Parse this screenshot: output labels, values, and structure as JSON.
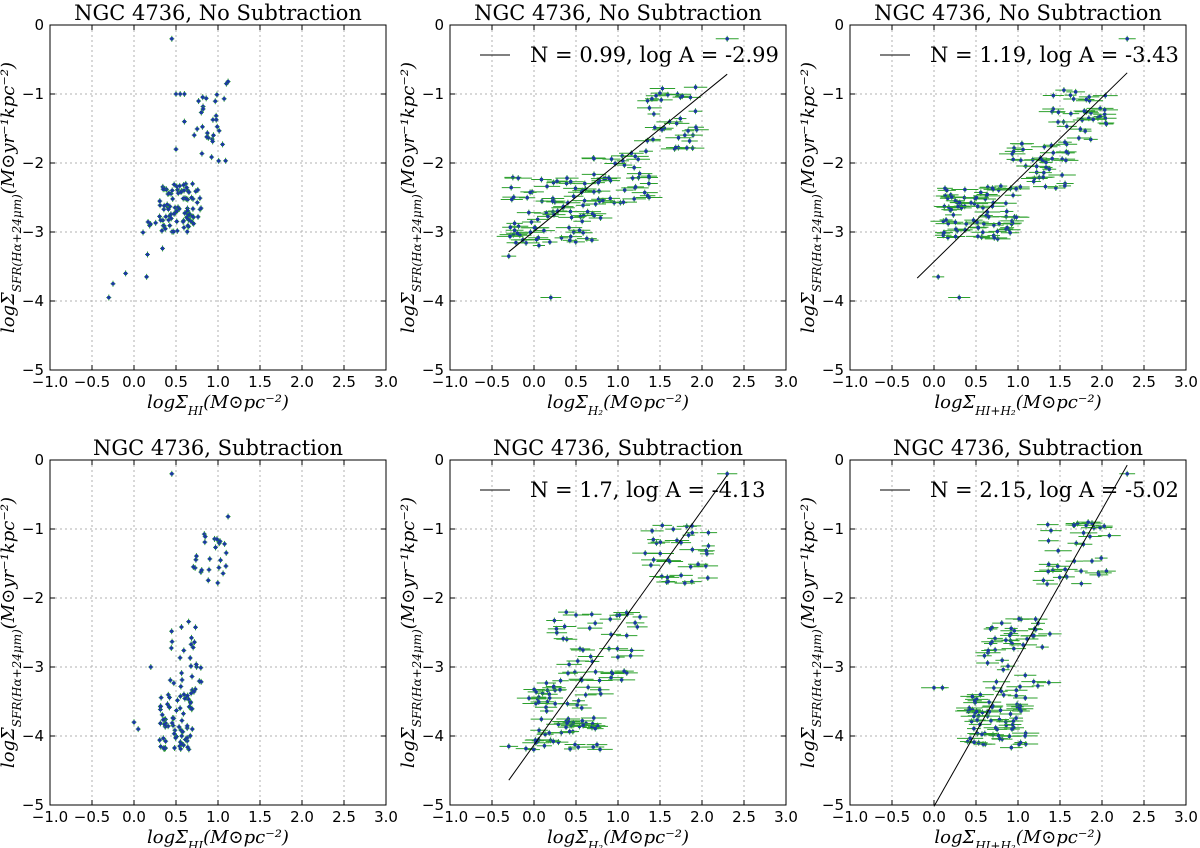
{
  "chart_data": [
    {
      "type": "scatter",
      "title": "NGC 4736, No Subtraction",
      "xlabel": "logΣ_HI(M⊙pc⁻²)",
      "ylabel": "logΣ_SFR(Hα+24μm)(M⊙yr⁻¹kpc⁻²)",
      "xlim": [
        -1.0,
        3.0
      ],
      "ylim": [
        -5,
        0
      ],
      "xticks": [
        "−1.0",
        "−0.5",
        "0.0",
        "0.5",
        "1.0",
        "1.5",
        "2.0",
        "2.5",
        "3.0"
      ],
      "yticks": [
        "0",
        "−1",
        "−2",
        "−3",
        "−4",
        "−5"
      ],
      "grid": true,
      "point_color": "#1a3aa0",
      "error_color": "#2ca02c",
      "clusters": [
        {
          "x": [
            0.3,
            0.8
          ],
          "y": [
            -3.0,
            -2.3
          ],
          "n": 90
        },
        {
          "x": [
            0.7,
            1.1
          ],
          "y": [
            -2.0,
            -1.0
          ],
          "n": 28
        },
        {
          "x": [
            0.1,
            0.4
          ],
          "y": [
            -3.4,
            -2.8
          ],
          "n": 10
        }
      ],
      "points": [
        {
          "x": 0.45,
          "y": -0.2
        },
        {
          "x": 1.1,
          "y": -0.85
        },
        {
          "x": 1.12,
          "y": -0.82
        },
        {
          "x": 0.5,
          "y": -1.0
        },
        {
          "x": 0.55,
          "y": -1.0
        },
        {
          "x": 0.6,
          "y": -1.0
        },
        {
          "x": 0.6,
          "y": -1.4
        },
        {
          "x": 0.5,
          "y": -1.8
        },
        {
          "x": -0.25,
          "y": -3.75
        },
        {
          "x": -0.3,
          "y": -3.95
        },
        {
          "x": -0.1,
          "y": -3.6
        },
        {
          "x": 0.15,
          "y": -3.65
        }
      ],
      "fit": null
    },
    {
      "type": "scatter",
      "title": "NGC 4736, No Subtraction",
      "xlabel": "logΣ_H2(M⊙pc⁻²)",
      "ylabel": "logΣ_SFR(Hα+24μm)(M⊙yr⁻¹kpc⁻²)",
      "xlim": [
        -1.0,
        3.0
      ],
      "ylim": [
        -5,
        0
      ],
      "xticks": [
        "−1.0",
        "−0.5",
        "0.0",
        "0.5",
        "1.0",
        "1.5",
        "2.0",
        "2.5",
        "3.0"
      ],
      "yticks": [
        "0",
        "−1",
        "−2",
        "−3",
        "−4",
        "−5"
      ],
      "grid": true,
      "point_color": "#1a3aa0",
      "error_color": "#2ca02c",
      "clusters": [
        {
          "x": [
            -0.3,
            0.8
          ],
          "y": [
            -3.2,
            -2.2
          ],
          "n": 80
        },
        {
          "x": [
            0.6,
            1.4
          ],
          "y": [
            -2.6,
            -1.8
          ],
          "n": 40
        },
        {
          "x": [
            1.3,
            2.0
          ],
          "y": [
            -1.8,
            -0.9
          ],
          "n": 35
        }
      ],
      "points": [
        {
          "x": 2.3,
          "y": -0.2
        },
        {
          "x": 0.2,
          "y": -3.95
        },
        {
          "x": -0.3,
          "y": -3.35
        }
      ],
      "fit": {
        "N": 0.99,
        "logA": -2.99,
        "x_range": [
          -0.3,
          2.3
        ]
      },
      "legend": "N = 0.99, log A = -2.99"
    },
    {
      "type": "scatter",
      "title": "NGC 4736, No Subtraction",
      "xlabel": "logΣ_HI+H2(M⊙pc⁻²)",
      "ylabel": "logΣ_SFR(Hα+24μm)(M⊙yr⁻¹kpc⁻²)",
      "xlim": [
        -1.0,
        3.0
      ],
      "ylim": [
        -5,
        0
      ],
      "xticks": [
        "−1.0",
        "−0.5",
        "0.0",
        "0.5",
        "1.0",
        "1.5",
        "2.0",
        "2.5",
        "3.0"
      ],
      "yticks": [
        "0",
        "−1",
        "−2",
        "−3",
        "−4",
        "−5"
      ],
      "grid": true,
      "point_color": "#1a3aa0",
      "error_color": "#2ca02c",
      "clusters": [
        {
          "x": [
            0.1,
            1.0
          ],
          "y": [
            -3.1,
            -2.3
          ],
          "n": 80
        },
        {
          "x": [
            0.9,
            1.6
          ],
          "y": [
            -2.4,
            -1.7
          ],
          "n": 40
        },
        {
          "x": [
            1.4,
            2.1
          ],
          "y": [
            -1.7,
            -0.9
          ],
          "n": 35
        }
      ],
      "points": [
        {
          "x": 2.3,
          "y": -0.2
        },
        {
          "x": 0.3,
          "y": -3.95
        },
        {
          "x": 0.05,
          "y": -3.65
        }
      ],
      "fit": {
        "N": 1.19,
        "logA": -3.43,
        "x_range": [
          -0.2,
          2.3
        ]
      },
      "legend": "N = 1.19, log A = -3.43"
    },
    {
      "type": "scatter",
      "title": "NGC 4736, Subtraction",
      "xlabel": "logΣ_HI(M⊙pc⁻²)",
      "ylabel": "logΣ_SFR(Hα+24μm)(M⊙yr⁻¹kpc⁻²)",
      "xlim": [
        -1.0,
        3.0
      ],
      "ylim": [
        -5,
        0
      ],
      "xticks": [
        "−1.0",
        "−0.5",
        "0.0",
        "0.5",
        "1.0",
        "1.5",
        "2.0",
        "2.5",
        "3.0"
      ],
      "yticks": [
        "0",
        "−1",
        "−2",
        "−3",
        "−4",
        "−5"
      ],
      "grid": true,
      "point_color": "#1a3aa0",
      "error_color": "#2ca02c",
      "clusters": [
        {
          "x": [
            0.3,
            0.7
          ],
          "y": [
            -4.2,
            -3.4
          ],
          "n": 70
        },
        {
          "x": [
            0.4,
            0.8
          ],
          "y": [
            -3.4,
            -2.3
          ],
          "n": 30
        },
        {
          "x": [
            0.7,
            1.1
          ],
          "y": [
            -1.8,
            -1.0
          ],
          "n": 25
        }
      ],
      "points": [
        {
          "x": 0.45,
          "y": -0.2
        },
        {
          "x": 1.12,
          "y": -0.82
        },
        {
          "x": 0.0,
          "y": -3.8
        },
        {
          "x": 0.05,
          "y": -3.9
        },
        {
          "x": 0.2,
          "y": -3.0
        }
      ],
      "fit": null
    },
    {
      "type": "scatter",
      "title": "NGC 4736, Subtraction",
      "xlabel": "logΣ_H2(M⊙pc⁻²)",
      "ylabel": "logΣ_SFR(Hα+24μm)(M⊙yr⁻¹kpc⁻²)",
      "xlim": [
        -1.0,
        3.0
      ],
      "ylim": [
        -5,
        0
      ],
      "xticks": [
        "−1.0",
        "−0.5",
        "0.0",
        "0.5",
        "1.0",
        "1.5",
        "2.0",
        "2.5",
        "3.0"
      ],
      "yticks": [
        "0",
        "−1",
        "−2",
        "−3",
        "−4",
        "−5"
      ],
      "grid": true,
      "point_color": "#1a3aa0",
      "error_color": "#2ca02c",
      "clusters": [
        {
          "x": [
            -0.1,
            0.8
          ],
          "y": [
            -4.2,
            -3.2
          ],
          "n": 70
        },
        {
          "x": [
            0.2,
            1.3
          ],
          "y": [
            -3.2,
            -2.2
          ],
          "n": 45
        },
        {
          "x": [
            1.3,
            2.1
          ],
          "y": [
            -1.8,
            -0.9
          ],
          "n": 35
        }
      ],
      "points": [
        {
          "x": 2.3,
          "y": -0.2
        },
        {
          "x": -0.3,
          "y": -4.15
        }
      ],
      "fit": {
        "N": 1.7,
        "logA": -4.13,
        "x_range": [
          -0.3,
          2.3
        ]
      },
      "legend": "N = 1.7, log A = -4.13"
    },
    {
      "type": "scatter",
      "title": "NGC 4736, Subtraction",
      "xlabel": "logΣ_HI+H2(M⊙pc⁻²)",
      "ylabel": "logΣ_SFR(Hα+24μm)(M⊙yr⁻¹kpc⁻²)",
      "xlim": [
        -1.0,
        3.0
      ],
      "ylim": [
        -5,
        0
      ],
      "xticks": [
        "−1.0",
        "−0.5",
        "0.0",
        "0.5",
        "1.0",
        "1.5",
        "2.0",
        "2.5",
        "3.0"
      ],
      "yticks": [
        "0",
        "−1",
        "−2",
        "−3",
        "−4",
        "−5"
      ],
      "grid": true,
      "point_color": "#1a3aa0",
      "error_color": "#2ca02c",
      "clusters": [
        {
          "x": [
            0.4,
            1.1
          ],
          "y": [
            -4.2,
            -3.3
          ],
          "n": 70
        },
        {
          "x": [
            0.6,
            1.4
          ],
          "y": [
            -3.3,
            -2.3
          ],
          "n": 40
        },
        {
          "x": [
            1.3,
            2.1
          ],
          "y": [
            -1.8,
            -0.9
          ],
          "n": 35
        }
      ],
      "points": [
        {
          "x": 2.3,
          "y": -0.2
        },
        {
          "x": 0.0,
          "y": -3.3
        },
        {
          "x": 0.1,
          "y": -3.3
        }
      ],
      "fit": {
        "N": 2.15,
        "logA": -5.02,
        "x_range": [
          0.0,
          2.3
        ]
      },
      "legend": "N = 2.15, log A = -5.02"
    }
  ]
}
